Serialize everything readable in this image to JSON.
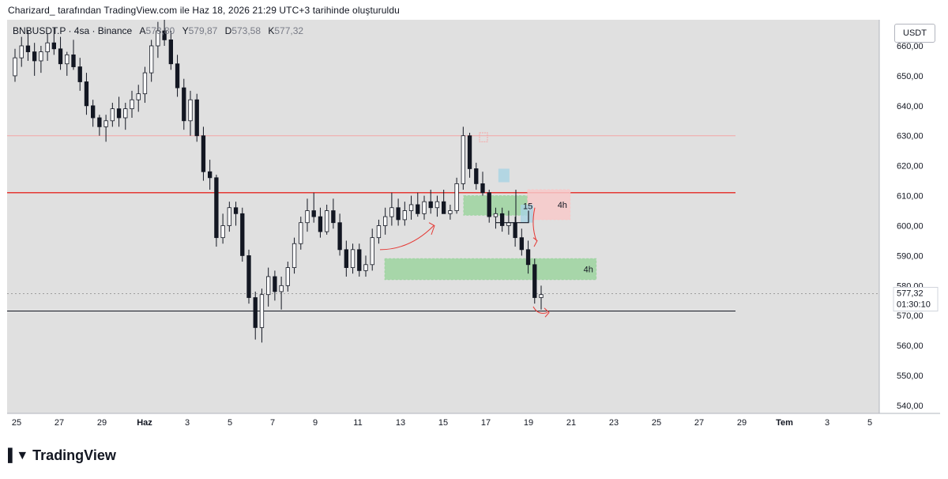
{
  "header": {
    "caption": "Charizard_ tarafından TradingView.com ile Haz 18, 2026 21:29 UTC+3 tarihinde oluşturuldu"
  },
  "legend": {
    "symbol": "BNBUSDT.P · 4sa · Binance",
    "open_label": "A",
    "open_value": "573,80",
    "high_label": "Y",
    "high_value": "579,87",
    "low_label": "D",
    "low_value": "573,58",
    "close_label": "K",
    "close_value": "577,32"
  },
  "currency_button": "USDT",
  "logo": {
    "text": "TradingView",
    "mark": "17"
  },
  "colors": {
    "bull": "#ffffff",
    "bear": "#131722",
    "candle_border": "#131722",
    "red_line": "#e53935",
    "faint_red_line": "#f4a6a6",
    "black_line": "#131722",
    "green_zone": "#9cd39f",
    "red_zone": "#f7c9c9",
    "blue_box": "#a8d3e3",
    "arrow": "#e53935",
    "plot_bg": "#e0e0e0"
  },
  "chart_data": {
    "type": "candlestick",
    "title": "",
    "x_tick_labels": [
      "25",
      "27",
      "29",
      "Haz",
      "3",
      "5",
      "7",
      "9",
      "11",
      "13",
      "15",
      "17",
      "19",
      "21",
      "23",
      "25",
      "27",
      "29",
      "Tem",
      "3",
      "5"
    ],
    "y_tick_labels": [
      "540,00",
      "550,00",
      "560,00",
      "570,00",
      "580,00",
      "590,00",
      "600,00",
      "610,00",
      "620,00",
      "630,00",
      "640,00",
      "650,00",
      "660,00"
    ],
    "ylim": [
      537,
      662
    ],
    "last_price": "577,32",
    "countdown": "01:30:10",
    "candles": [
      [
        650,
        659,
        648,
        656
      ],
      [
        656,
        663,
        653,
        660
      ],
      [
        660,
        665,
        655,
        658
      ],
      [
        658,
        661,
        650,
        655
      ],
      [
        655,
        660,
        651,
        658
      ],
      [
        658,
        664,
        655,
        661
      ],
      [
        661,
        666,
        657,
        659
      ],
      [
        659,
        663,
        652,
        654
      ],
      [
        654,
        658,
        650,
        657
      ],
      [
        657,
        662,
        652,
        653
      ],
      [
        653,
        656,
        645,
        648
      ],
      [
        648,
        651,
        637,
        640
      ],
      [
        640,
        642,
        633,
        636
      ],
      [
        636,
        637,
        630,
        633
      ],
      [
        633,
        637,
        628,
        635
      ],
      [
        635,
        641,
        633,
        639
      ],
      [
        639,
        643,
        633,
        636
      ],
      [
        636,
        641,
        632,
        639
      ],
      [
        639,
        645,
        636,
        642
      ],
      [
        642,
        647,
        638,
        644
      ],
      [
        644,
        653,
        641,
        651
      ],
      [
        651,
        662,
        648,
        660
      ],
      [
        660,
        668,
        656,
        665
      ],
      [
        665,
        670,
        660,
        662
      ],
      [
        662,
        665,
        652,
        654
      ],
      [
        654,
        657,
        643,
        646
      ],
      [
        646,
        649,
        632,
        635
      ],
      [
        635,
        645,
        630,
        642
      ],
      [
        642,
        644,
        628,
        630
      ],
      [
        630,
        633,
        615,
        618
      ],
      [
        618,
        622,
        612,
        616
      ],
      [
        616,
        617,
        593,
        596
      ],
      [
        596,
        604,
        594,
        600
      ],
      [
        600,
        608,
        598,
        606
      ],
      [
        606,
        608,
        600,
        604
      ],
      [
        604,
        606,
        588,
        590
      ],
      [
        590,
        592,
        574,
        576
      ],
      [
        576,
        578,
        562,
        566
      ],
      [
        566,
        579,
        561,
        577
      ],
      [
        577,
        586,
        573,
        583
      ],
      [
        583,
        585,
        575,
        578
      ],
      [
        578,
        583,
        572,
        580
      ],
      [
        580,
        588,
        578,
        586
      ],
      [
        586,
        596,
        584,
        594
      ],
      [
        594,
        603,
        592,
        601
      ],
      [
        601,
        609,
        598,
        605
      ],
      [
        605,
        611,
        601,
        603
      ],
      [
        603,
        606,
        596,
        598
      ],
      [
        598,
        607,
        597,
        605
      ],
      [
        605,
        609,
        599,
        601
      ],
      [
        601,
        604,
        590,
        592
      ],
      [
        592,
        595,
        583,
        586
      ],
      [
        586,
        594,
        584,
        592
      ],
      [
        592,
        594,
        583,
        585
      ],
      [
        585,
        590,
        583,
        587
      ],
      [
        587,
        599,
        585,
        596
      ],
      [
        596,
        602,
        594,
        600
      ],
      [
        600,
        606,
        597,
        603
      ],
      [
        603,
        611,
        600,
        606
      ],
      [
        606,
        609,
        600,
        602
      ],
      [
        602,
        608,
        600,
        605
      ],
      [
        605,
        610,
        602,
        607
      ],
      [
        607,
        611,
        603,
        604
      ],
      [
        604,
        610,
        602,
        608
      ],
      [
        608,
        612,
        604,
        606
      ],
      [
        606,
        610,
        603,
        608
      ],
      [
        608,
        612,
        604,
        604
      ],
      [
        604,
        607,
        602,
        605
      ],
      [
        605,
        616,
        604,
        614
      ],
      [
        614,
        633,
        612,
        630
      ],
      [
        630,
        631,
        616,
        619
      ],
      [
        619,
        621,
        612,
        614
      ],
      [
        614,
        618,
        610,
        611
      ],
      [
        611,
        612,
        601,
        603
      ],
      [
        603,
        606,
        599,
        604
      ],
      [
        604,
        606,
        598,
        600
      ],
      [
        600,
        605,
        597,
        601
      ],
      [
        601,
        603,
        593,
        596
      ],
      [
        596,
        599,
        590,
        592
      ],
      [
        592,
        595,
        584,
        587
      ],
      [
        587,
        589,
        574,
        576
      ],
      [
        576,
        580,
        572,
        577
      ]
    ],
    "horizontal_levels": [
      {
        "name": "resistance",
        "value": 611,
        "color": "#e53935"
      },
      {
        "name": "upper-level",
        "value": 630,
        "color": "#f4a6a6"
      },
      {
        "name": "support",
        "value": 571.5,
        "color": "#131722"
      }
    ],
    "zones": [
      {
        "name": "upper-green-zone",
        "from_date": "Haz 14",
        "to_date": "Haz 17",
        "low": 603.5,
        "high": 610,
        "color": "#9cd39f",
        "label": ""
      },
      {
        "name": "red-zone",
        "from_date": "Haz 17",
        "to_date": "Haz 19",
        "low": 602,
        "high": 612,
        "color": "#f7c9c9",
        "label": "4h"
      },
      {
        "name": "lower-green-zone",
        "from_date": "Haz 10",
        "to_date": "Haz 20",
        "low": 582,
        "high": 589,
        "color": "#9cd39f",
        "label": "4h"
      }
    ],
    "annotations": [
      {
        "name": "box-15",
        "label": "15"
      }
    ]
  }
}
